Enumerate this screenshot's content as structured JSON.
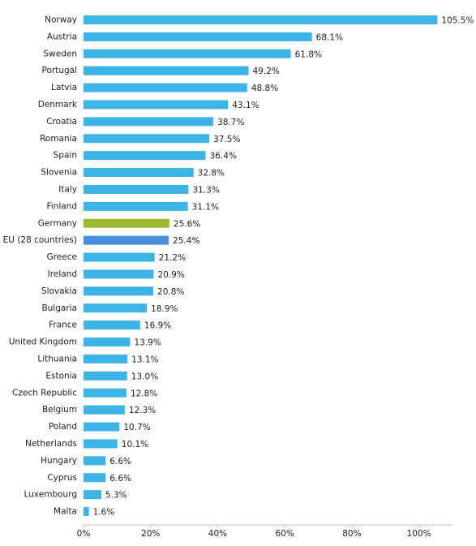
{
  "chart_data": {
    "type": "bar",
    "orientation": "horizontal",
    "categories": [
      "Norway",
      "Austria",
      "Sweden",
      "Portugal",
      "Latvia",
      "Denmark",
      "Croatia",
      "Romania",
      "Spain",
      "Slovenia",
      "Italy",
      "Finland",
      "Germany",
      "EU (28 countries)",
      "Greece",
      "Ireland",
      "Slovakia",
      "Bulgaria",
      "France",
      "United Kingdom",
      "Lithuania",
      "Estonia",
      "Czech Republic",
      "Belgium",
      "Poland",
      "Netherlands",
      "Hungary",
      "Cyprus",
      "Luxembourg",
      "Malta"
    ],
    "values": [
      105.5,
      68.1,
      61.8,
      49.2,
      48.8,
      43.1,
      38.7,
      37.5,
      36.4,
      32.8,
      31.3,
      31.1,
      25.6,
      25.4,
      21.2,
      20.9,
      20.8,
      18.9,
      16.9,
      13.9,
      13.1,
      13.0,
      12.8,
      12.3,
      10.7,
      10.1,
      6.6,
      6.6,
      5.3,
      1.6
    ],
    "value_labels": [
      "105.5%",
      "68.1%",
      "61.8%",
      "49.2%",
      "48.8%",
      "43.1%",
      "38.7%",
      "37.5%",
      "36.4%",
      "32.8%",
      "31.3%",
      "31.1%",
      "25.6%",
      "25.4%",
      "21.2%",
      "20.9%",
      "20.8%",
      "18.9%",
      "16.9%",
      "13.9%",
      "13.1%",
      "13.0%",
      "12.8%",
      "12.3%",
      "10.7%",
      "10.1%",
      "6.6%",
      "6.6%",
      "5.3%",
      "1.6%"
    ],
    "colors": [
      "#3cb4e5",
      "#3cb4e5",
      "#3cb4e5",
      "#3cb4e5",
      "#3cb4e5",
      "#3cb4e5",
      "#3cb4e5",
      "#3cb4e5",
      "#3cb4e5",
      "#3cb4e5",
      "#3cb4e5",
      "#3cb4e5",
      "#9dba2f",
      "#4a8fdc",
      "#3cb4e5",
      "#3cb4e5",
      "#3cb4e5",
      "#3cb4e5",
      "#3cb4e5",
      "#3cb4e5",
      "#3cb4e5",
      "#3cb4e5",
      "#3cb4e5",
      "#3cb4e5",
      "#3cb4e5",
      "#3cb4e5",
      "#3cb4e5",
      "#3cb4e5",
      "#3cb4e5",
      "#3cb4e5"
    ],
    "xlim": [
      0,
      110
    ],
    "xticks": [
      {
        "value": 0,
        "label": "0%"
      },
      {
        "value": 20,
        "label": "20%"
      },
      {
        "value": 40,
        "label": "40%"
      },
      {
        "value": 60,
        "label": "60%"
      },
      {
        "value": 80,
        "label": "80%"
      },
      {
        "value": 100,
        "label": "100%"
      }
    ],
    "grid": false
  }
}
